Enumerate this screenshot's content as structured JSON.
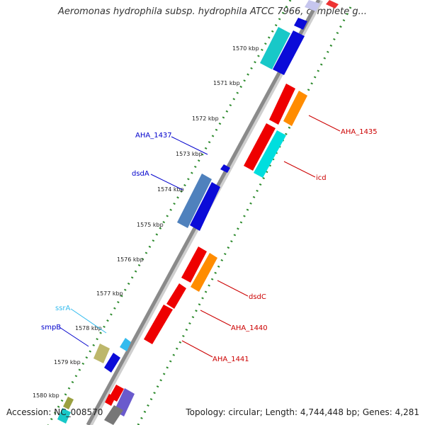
{
  "header": {
    "title": "Aeromonas hydrophila subsp. hydrophila ATCC 7966, complete g..."
  },
  "footer": {
    "accession": "Accession: NC_008570",
    "topology": "Topology: circular; Length: 4,744,448 bp; Genes: 4,281"
  },
  "colors": {
    "backbone": "#8a8a8a",
    "tick": "#2e8b2e",
    "forward_label": "#0000cc",
    "reverse_label": "#cc0000",
    "rna_label": "#33bbee"
  },
  "scale": {
    "ticks": [
      {
        "label": "1570 kbp"
      },
      {
        "label": "1571 kbp"
      },
      {
        "label": "1572 kbp"
      },
      {
        "label": "1573 kbp"
      },
      {
        "label": "1574 kbp"
      },
      {
        "label": "1575 kbp"
      },
      {
        "label": "1576 kbp"
      },
      {
        "label": "1577 kbp"
      },
      {
        "label": "1578 kbp"
      },
      {
        "label": "1579 kbp"
      },
      {
        "label": "1580 kbp"
      }
    ]
  },
  "gene_labels": [
    {
      "name": "AHA_1435",
      "color": "#cc0000"
    },
    {
      "name": "icd",
      "color": "#cc0000"
    },
    {
      "name": "AHA_1437",
      "color": "#0000cc"
    },
    {
      "name": "dsdA",
      "color": "#0000cc"
    },
    {
      "name": "dsdC",
      "color": "#cc0000"
    },
    {
      "name": "AHA_1440",
      "color": "#cc0000"
    },
    {
      "name": "AHA_1441",
      "color": "#cc0000"
    },
    {
      "name": "ssrA",
      "color": "#33bbee"
    },
    {
      "name": "smpB",
      "color": "#0000cc"
    }
  ]
}
